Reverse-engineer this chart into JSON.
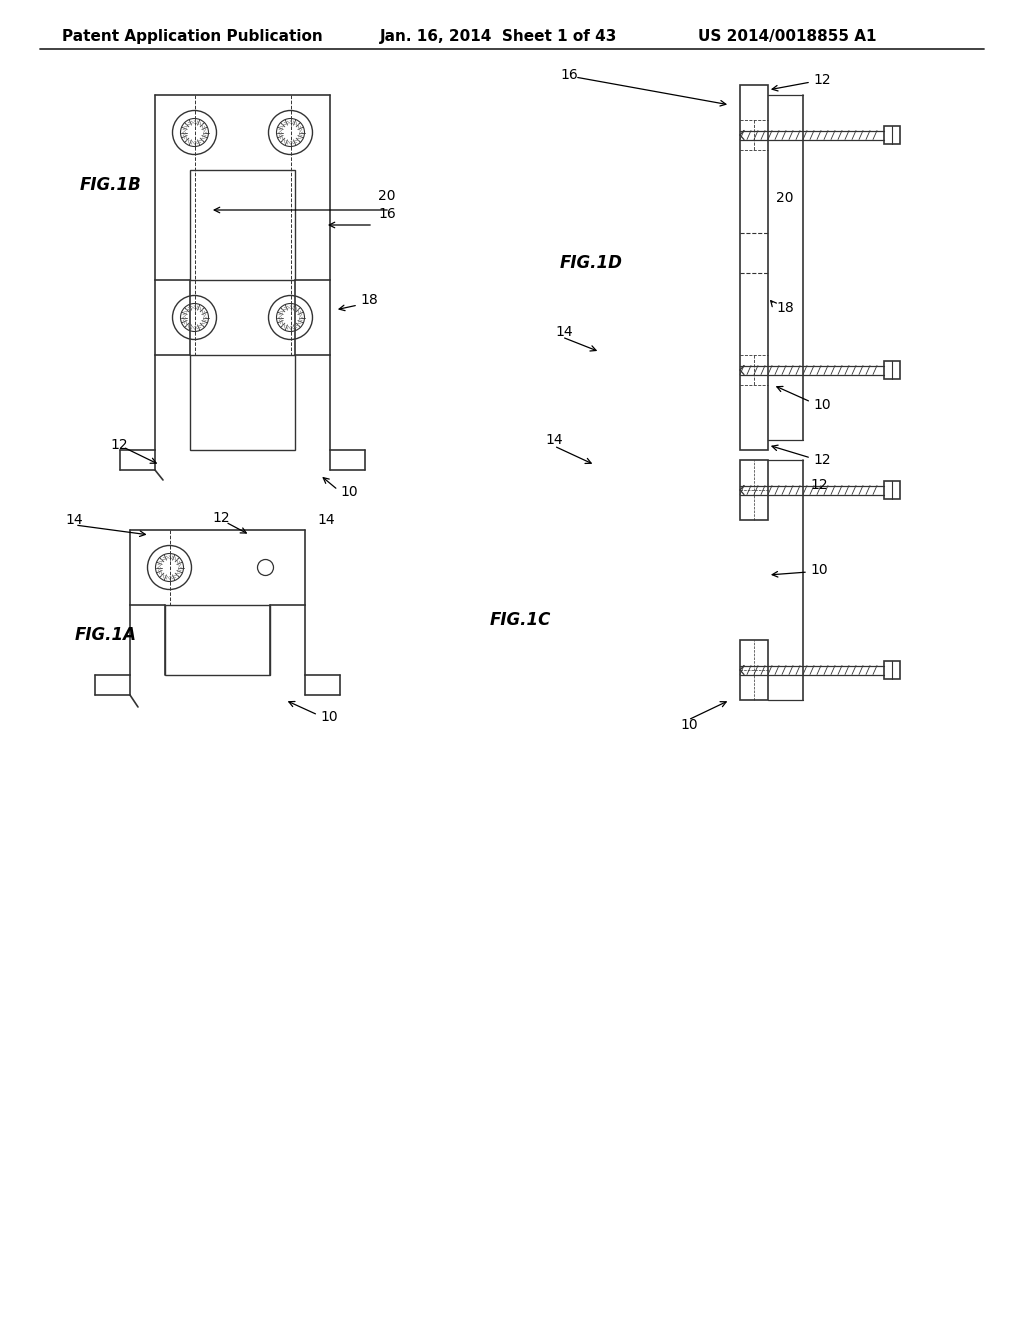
{
  "background_color": "#ffffff",
  "header_left": "Patent Application Publication",
  "header_center": "Jan. 16, 2014  Sheet 1 of 43",
  "header_right": "US 2014/0018855 A1",
  "header_fontsize": 11,
  "fig_label_fontsize": 12,
  "annotation_fontsize": 10,
  "line_color": "#333333",
  "line_lw": 1.0
}
